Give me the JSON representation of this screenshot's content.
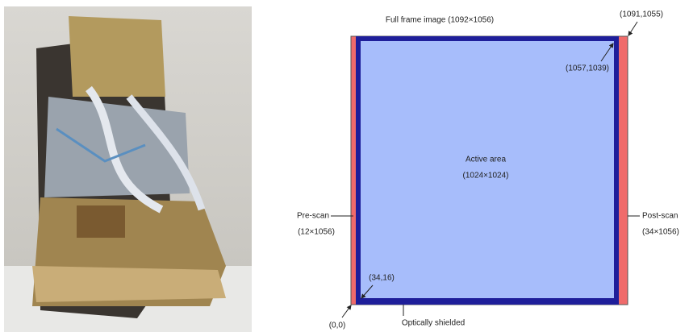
{
  "diagram": {
    "frame_label": "Full frame image (1092×1056)",
    "top_right_corner": "(1091,1055)",
    "active_top_right": "(1057,1039)",
    "active_label": "Active area",
    "active_size": "(1024×1024)",
    "prescan_label": "Pre-scan",
    "prescan_size": "(12×1056)",
    "postscan_label": "Post-scan",
    "postscan_size": "(34×1056)",
    "active_origin": "(34,16)",
    "origin": "(0,0)",
    "shield_label": "Optically shielded"
  }
}
